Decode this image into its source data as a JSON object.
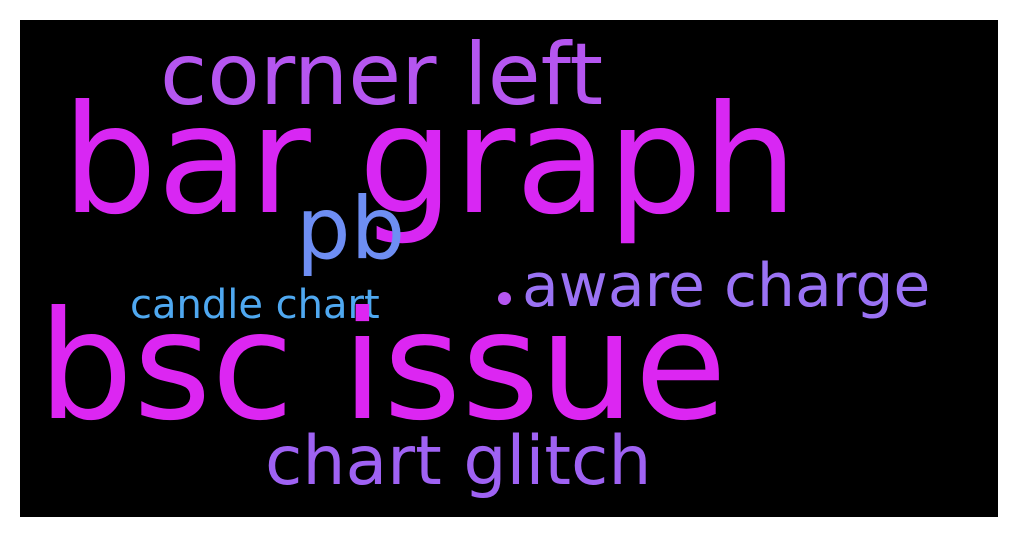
{
  "word_cloud": {
    "background": "#000000",
    "words": [
      {
        "text": "corner left",
        "color": "#b556f0"
      },
      {
        "text": "bar graph",
        "color": "#d827f3"
      },
      {
        "text": "pb",
        "color": "#6e8ef3"
      },
      {
        "text": "aware charge",
        "color": "#9a72f4"
      },
      {
        "text": "candle chart",
        "color": "#4fa8f0"
      },
      {
        "text": "bsc issue",
        "color": "#dc26f2"
      },
      {
        "text": "chart glitch",
        "color": "#9f62f3"
      }
    ],
    "dot_color": "#b556f0"
  }
}
